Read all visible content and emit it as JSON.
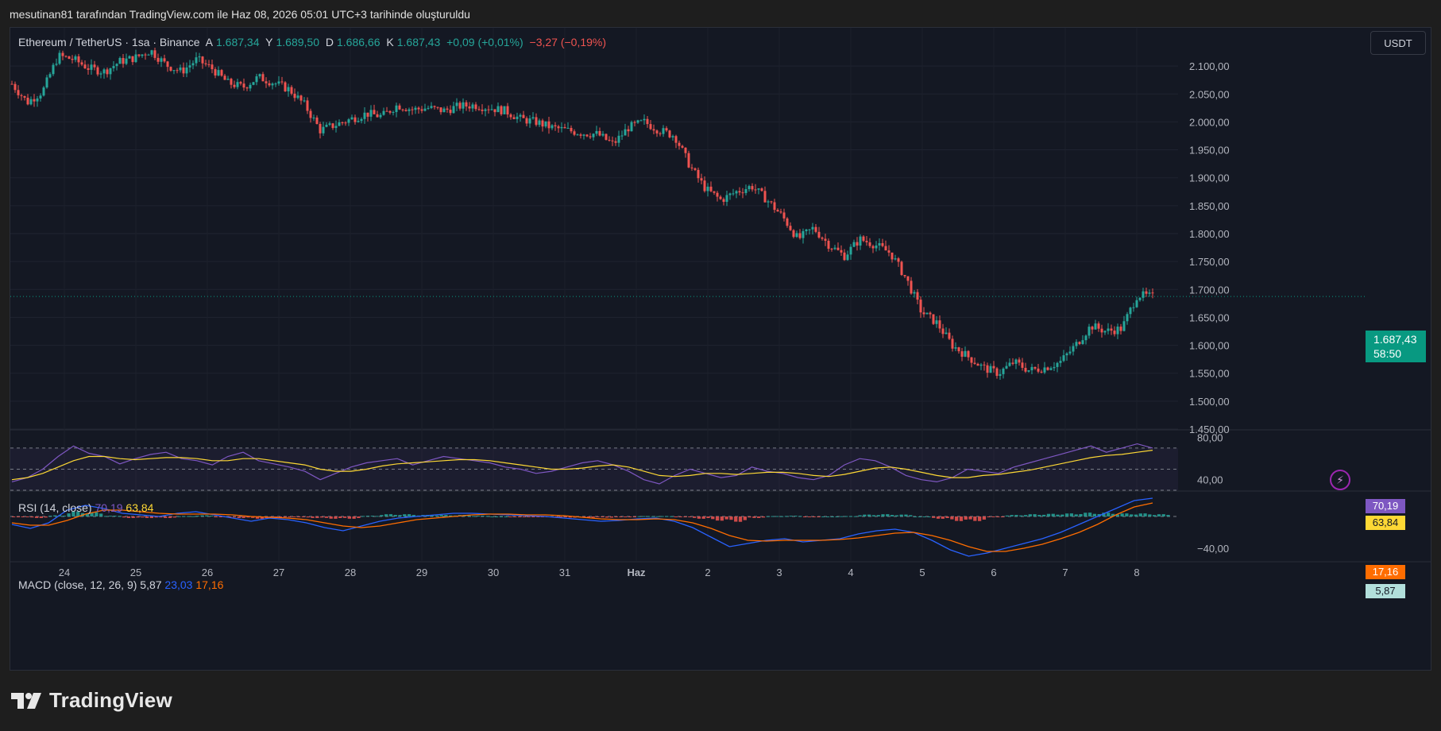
{
  "caption": "mesutinan81 tarafından TradingView.com ile Haz 08, 2026 05:01 UTC+3 tarihinde oluşturuldu",
  "legend": {
    "symbol": "Ethereum / TetherUS · 1sa · Binance",
    "open_label": "A",
    "open": "1.687,34",
    "high_label": "Y",
    "high": "1.689,50",
    "low_label": "D",
    "low": "1.686,66",
    "close_label": "K",
    "close": "1.687,43",
    "change": "+0,09 (+0,01%)",
    "change2": "−3,27 (−0,19%)"
  },
  "currency_button": "USDT",
  "price_badge": {
    "price": "1.687,43",
    "countdown": "58:50"
  },
  "rsi": {
    "label": "RSI (14, close)",
    "value": "70,19",
    "ma": "63,84",
    "axis_labels": [
      "80,00",
      "40,00"
    ]
  },
  "macd": {
    "label": "MACD (close, 12, 26, 9)",
    "hist": "5,87",
    "macd": "23,03",
    "signal": "17,16",
    "axis_label": "−40,00"
  },
  "price_axis": [
    "2.100,00",
    "2.050,00",
    "2.000,00",
    "1.950,00",
    "1.900,00",
    "1.850,00",
    "1.800,00",
    "1.750,00",
    "1.700,00",
    "1.650,00",
    "1.600,00",
    "1.550,00",
    "1.500,00",
    "1.450,00"
  ],
  "time_axis": [
    "24",
    "25",
    "26",
    "27",
    "28",
    "29",
    "30",
    "31",
    "Haz",
    "2",
    "3",
    "4",
    "5",
    "6",
    "7",
    "8"
  ],
  "colors": {
    "up": "#26a69a",
    "down": "#ef5350",
    "rsi": "#7e57c2",
    "rsi_ma": "#fdd835",
    "macd": "#2962ff",
    "signal": "#ff6d00",
    "accent": "#089981"
  },
  "chart_data": {
    "type": "candlestick",
    "symbol": "ETH/USDT",
    "ylim": [
      1450,
      2140
    ],
    "x": [
      "24",
      "25",
      "26",
      "27",
      "28",
      "29",
      "30",
      "31",
      "Haz",
      "2",
      "3",
      "4",
      "5",
      "6",
      "7",
      "8"
    ],
    "close_series": [
      2068,
      2035,
      2055,
      2118,
      2112,
      2096,
      2090,
      2108,
      2115,
      2128,
      2102,
      2090,
      2112,
      2095,
      2070,
      2062,
      2080,
      2070,
      2058,
      2030,
      1985,
      1995,
      2005,
      2015,
      2010,
      2030,
      2022,
      2025,
      2020,
      2028,
      2030,
      2025,
      2020,
      2005,
      2000,
      1990,
      1985,
      1980,
      1978,
      1960,
      1990,
      2000,
      1985,
      1975,
      1920,
      1880,
      1860,
      1875,
      1885,
      1860,
      1830,
      1790,
      1810,
      1780,
      1760,
      1790,
      1780,
      1765,
      1720,
      1660,
      1640,
      1600,
      1580,
      1560,
      1550,
      1570,
      1555,
      1560,
      1570,
      1600,
      1635,
      1625,
      1630,
      1690,
      1687
    ]
  },
  "rsi_chart": {
    "type": "line",
    "ylim": [
      30,
      85
    ],
    "values": [
      38,
      42,
      50,
      62,
      72,
      65,
      62,
      55,
      60,
      64,
      66,
      60,
      58,
      54,
      62,
      66,
      58,
      55,
      52,
      48,
      40,
      46,
      52,
      56,
      58,
      60,
      54,
      58,
      62,
      60,
      58,
      56,
      52,
      50,
      46,
      48,
      52,
      56,
      58,
      54,
      48,
      40,
      36,
      44,
      50,
      46,
      42,
      44,
      52,
      48,
      46,
      42,
      40,
      44,
      54,
      60,
      58,
      52,
      44,
      40,
      38,
      42,
      50,
      48,
      46,
      52,
      56,
      60,
      64,
      68,
      72,
      66,
      70,
      74,
      70
    ],
    "ma_values": [
      40,
      42,
      46,
      52,
      58,
      62,
      62,
      60,
      59,
      60,
      61,
      61,
      60,
      58,
      58,
      60,
      60,
      58,
      56,
      54,
      50,
      48,
      48,
      50,
      53,
      55,
      56,
      57,
      58,
      59,
      59,
      58,
      56,
      54,
      52,
      50,
      50,
      51,
      53,
      54,
      52,
      48,
      44,
      43,
      44,
      46,
      46,
      45,
      46,
      47,
      47,
      46,
      44,
      43,
      45,
      48,
      51,
      52,
      50,
      47,
      44,
      42,
      42,
      44,
      45,
      47,
      49,
      52,
      55,
      58,
      61,
      63,
      64,
      66,
      68
    ]
  },
  "macd_chart": {
    "type": "line",
    "ylim": [
      -55,
      30
    ],
    "macd_values": [
      -10,
      -15,
      -8,
      8,
      14,
      10,
      4,
      2,
      0,
      4,
      6,
      2,
      -2,
      -6,
      -2,
      -4,
      -8,
      -14,
      -18,
      -12,
      -6,
      -2,
      0,
      2,
      4,
      4,
      3,
      2,
      1,
      0,
      -2,
      -4,
      -6,
      -5,
      -3,
      -2,
      -6,
      -14,
      -26,
      -38,
      -34,
      -30,
      -28,
      -32,
      -30,
      -28,
      -22,
      -18,
      -16,
      -20,
      -30,
      -42,
      -50,
      -46,
      -40,
      -34,
      -28,
      -20,
      -10,
      0,
      10,
      20,
      23
    ],
    "signal_values": [
      -8,
      -11,
      -11,
      -5,
      3,
      8,
      8,
      6,
      4,
      3,
      3,
      3,
      2,
      0,
      -1,
      -2,
      -4,
      -8,
      -12,
      -14,
      -12,
      -8,
      -4,
      -2,
      0,
      2,
      3,
      3,
      2,
      2,
      1,
      -1,
      -3,
      -4,
      -4,
      -3,
      -4,
      -8,
      -15,
      -24,
      -30,
      -31,
      -30,
      -30,
      -30,
      -29,
      -27,
      -24,
      -21,
      -20,
      -24,
      -30,
      -38,
      -44,
      -44,
      -40,
      -35,
      -28,
      -20,
      -10,
      2,
      12,
      17
    ]
  }
}
